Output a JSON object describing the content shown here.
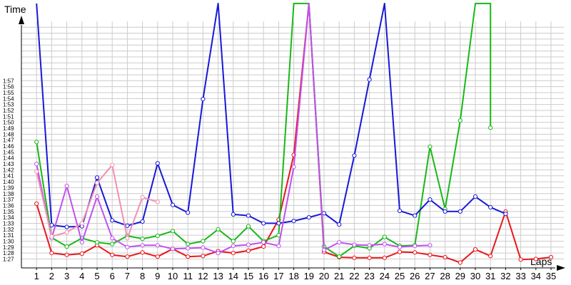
{
  "chart_data": {
    "type": "line",
    "ylabel": "Time",
    "xlabel": "Laps",
    "grid": true,
    "xlim": [
      0,
      35
    ],
    "ylim_seconds": [
      85.5,
      122
    ],
    "x_ticks": [
      "1",
      "2",
      "3",
      "4",
      "5",
      "6",
      "7",
      "8",
      "9",
      "10",
      "11",
      "12",
      "13",
      "14",
      "15",
      "16",
      "17",
      "18",
      "19",
      "20",
      "21",
      "22",
      "23",
      "24",
      "25",
      "26",
      "27",
      "28",
      "29",
      "30",
      "31",
      "32",
      "33",
      "34",
      "35"
    ],
    "y_ticks": [
      "1:27",
      "1:28",
      "1:29",
      "1:30",
      "1:31",
      "1:32",
      "1:33",
      "1:34",
      "1:35",
      "1:36",
      "1:37",
      "1:38",
      "1:39",
      "1:40",
      "1:41",
      "1:42",
      "1:43",
      "1:44",
      "1:45",
      "1:46",
      "1:47",
      "1:48",
      "1:49",
      "1:50",
      "1:51",
      "1:52",
      "1:53",
      "1:54",
      "1:55",
      "1:56",
      "1:57"
    ],
    "series": [
      {
        "color": "#e8171d",
        "points": [
          [
            1,
            96.3
          ],
          [
            2,
            88.0
          ],
          [
            3,
            87.7
          ],
          [
            4,
            87.9
          ],
          [
            5,
            89.3
          ],
          [
            6,
            87.7
          ],
          [
            7,
            87.4
          ],
          [
            8,
            88.1
          ],
          [
            9,
            87.4
          ],
          [
            10,
            88.7
          ],
          [
            11,
            87.4
          ],
          [
            12,
            87.5
          ],
          [
            13,
            88.3
          ],
          [
            14,
            88.0
          ],
          [
            15,
            88.4
          ],
          [
            16,
            89.1
          ],
          [
            17,
            93.6
          ],
          [
            18,
            104.5
          ],
          [
            19,
            130.0
          ],
          [
            20,
            88.2
          ],
          [
            21,
            87.3
          ],
          [
            22,
            87.2
          ],
          [
            23,
            87.2
          ],
          [
            24,
            87.2
          ],
          [
            25,
            88.2
          ],
          [
            26,
            88.1
          ],
          [
            27,
            87.7
          ],
          [
            28,
            87.3
          ],
          [
            29,
            86.4
          ],
          [
            30,
            88.6
          ],
          [
            31,
            87.5
          ],
          [
            32,
            95.0
          ],
          [
            33,
            86.9
          ],
          [
            34,
            87.0
          ],
          [
            35,
            87.3
          ]
        ]
      },
      {
        "color": "#18b818",
        "points": [
          [
            1,
            106.7
          ],
          [
            2,
            90.6
          ],
          [
            3,
            89.1
          ],
          [
            4,
            90.5
          ],
          [
            5,
            89.8
          ],
          [
            6,
            89.5
          ],
          [
            7,
            90.9
          ],
          [
            8,
            90.4
          ],
          [
            9,
            90.9
          ],
          [
            10,
            91.7
          ],
          [
            11,
            89.5
          ],
          [
            12,
            90.0
          ],
          [
            13,
            92.0
          ],
          [
            14,
            90.0
          ],
          [
            15,
            92.5
          ],
          [
            16,
            90.0
          ],
          [
            17,
            91.0
          ],
          [
            18,
            130.0
          ],
          [
            19,
            130.0
          ],
          [
            20,
            89.1
          ],
          [
            21,
            87.4
          ],
          [
            22,
            89.2
          ],
          [
            23,
            88.8
          ],
          [
            24,
            90.7
          ],
          [
            25,
            89.2
          ],
          [
            26,
            89.3
          ],
          [
            27,
            105.9
          ],
          [
            28,
            95.4
          ],
          [
            29,
            110.3
          ],
          [
            30,
            130.0
          ],
          [
            31,
            130.0
          ],
          [
            31,
            109.1
          ]
        ]
      },
      {
        "color": "#1818d8",
        "points": [
          [
            1,
            130.0
          ],
          [
            2,
            92.7
          ],
          [
            3,
            92.4
          ],
          [
            4,
            92.5
          ],
          [
            5,
            100.7
          ],
          [
            6,
            93.5
          ],
          [
            7,
            92.6
          ],
          [
            8,
            93.3
          ],
          [
            9,
            103.1
          ],
          [
            10,
            96.1
          ],
          [
            11,
            94.8
          ],
          [
            12,
            113.9
          ],
          [
            13,
            130.0
          ],
          [
            14,
            94.5
          ],
          [
            15,
            94.3
          ],
          [
            16,
            93.0
          ],
          [
            17,
            93.0
          ],
          [
            18,
            93.4
          ],
          [
            19,
            94.0
          ],
          [
            20,
            94.7
          ],
          [
            21,
            92.8
          ],
          [
            22,
            104.4
          ],
          [
            23,
            117.2
          ],
          [
            24,
            130.0
          ],
          [
            25,
            95.1
          ],
          [
            26,
            94.3
          ],
          [
            27,
            97.0
          ],
          [
            28,
            95.0
          ],
          [
            29,
            95.0
          ],
          [
            30,
            97.5
          ],
          [
            31,
            95.7
          ],
          [
            32,
            94.6
          ]
        ]
      },
      {
        "color": "#c050f0",
        "points": [
          [
            1,
            103.0
          ],
          [
            2,
            90.5
          ],
          [
            3,
            99.3
          ],
          [
            4,
            89.8
          ],
          [
            5,
            97.5
          ],
          [
            6,
            90.5
          ],
          [
            7,
            89.0
          ],
          [
            8,
            89.3
          ],
          [
            9,
            89.3
          ],
          [
            10,
            88.7
          ],
          [
            11,
            88.8
          ],
          [
            12,
            88.9
          ],
          [
            13,
            88.0
          ],
          [
            14,
            89.2
          ],
          [
            15,
            89.4
          ],
          [
            16,
            89.8
          ],
          [
            17,
            89.2
          ],
          [
            18,
            102.5
          ],
          [
            19,
            130.0
          ],
          [
            20,
            88.5
          ],
          [
            21,
            89.8
          ],
          [
            22,
            89.4
          ],
          [
            23,
            89.3
          ],
          [
            24,
            89.5
          ],
          [
            25,
            89.0
          ],
          [
            26,
            89.2
          ],
          [
            27,
            89.3
          ]
        ]
      },
      {
        "color": "#f090b0",
        "points": [
          [
            1,
            101.7
          ],
          [
            2,
            90.8
          ],
          [
            3,
            91.5
          ],
          [
            4,
            93.0
          ],
          [
            5,
            99.8
          ],
          [
            6,
            102.8
          ],
          [
            7,
            90.5
          ],
          [
            8,
            97.4
          ],
          [
            9,
            96.6
          ]
        ]
      }
    ]
  }
}
